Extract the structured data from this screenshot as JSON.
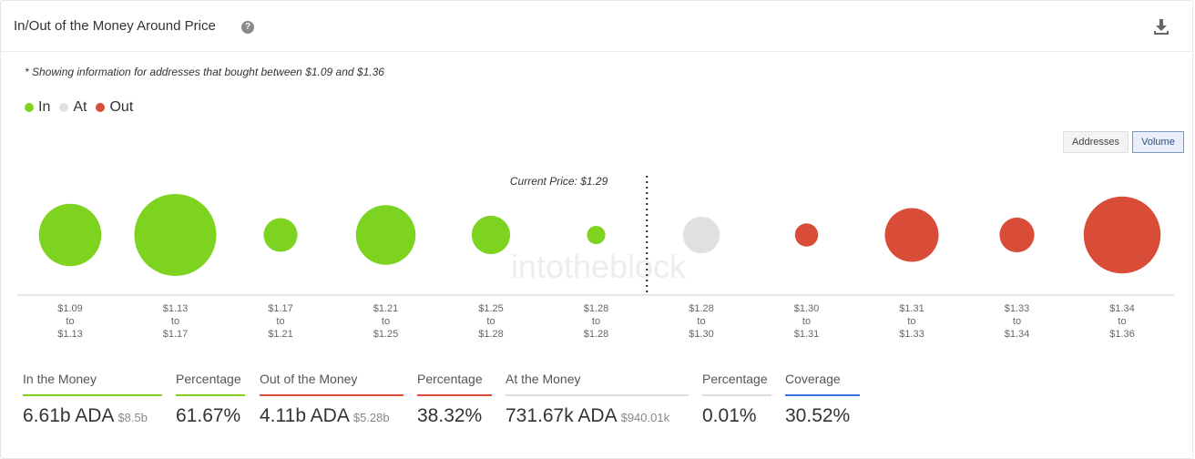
{
  "header": {
    "title": "In/Out of the Money Around Price",
    "help_icon": "question-circle-icon",
    "download_icon": "download-icon"
  },
  "note": "* Showing information for addresses that bought between $1.09 and $1.36",
  "legend": [
    {
      "label": "In",
      "color": "#7ed321"
    },
    {
      "label": "At",
      "color": "#e0e0e0"
    },
    {
      "label": "Out",
      "color": "#d94c38"
    }
  ],
  "toggles": {
    "addresses": "Addresses",
    "volume": "Volume",
    "active": "volume"
  },
  "watermark": "intotheblock",
  "chart_data": {
    "type": "scatter",
    "annotation": "Current Price: $1.29",
    "current_price_after_index": 5,
    "ranges": [
      {
        "from": "$1.09",
        "to": "$1.13",
        "status": "in",
        "relative_size": 0.58
      },
      {
        "from": "$1.13",
        "to": "$1.17",
        "status": "in",
        "relative_size": 1.0
      },
      {
        "from": "$1.17",
        "to": "$1.21",
        "status": "in",
        "relative_size": 0.17
      },
      {
        "from": "$1.21",
        "to": "$1.25",
        "status": "in",
        "relative_size": 0.53
      },
      {
        "from": "$1.25",
        "to": "$1.28",
        "status": "in",
        "relative_size": 0.22
      },
      {
        "from": "$1.28",
        "to": "$1.28",
        "status": "in",
        "relative_size": 0.05
      },
      {
        "from": "$1.28",
        "to": "$1.30",
        "status": "at",
        "relative_size": 0.2
      },
      {
        "from": "$1.30",
        "to": "$1.31",
        "status": "out",
        "relative_size": 0.08
      },
      {
        "from": "$1.31",
        "to": "$1.33",
        "status": "out",
        "relative_size": 0.43
      },
      {
        "from": "$1.33",
        "to": "$1.34",
        "status": "out",
        "relative_size": 0.18
      },
      {
        "from": "$1.34",
        "to": "$1.36",
        "status": "out",
        "relative_size": 0.88
      }
    ],
    "to_word": "to",
    "colors": {
      "in": "#7ed321",
      "at": "#e0e0e0",
      "out": "#d94c38"
    }
  },
  "stats": {
    "in_money": {
      "label": "In the Money",
      "value": "6.61b ADA",
      "sub": "$8.5b",
      "color": "#7ed321"
    },
    "in_pct": {
      "label": "Percentage",
      "value": "61.67%",
      "color": "#7ed321"
    },
    "out_money": {
      "label": "Out of the Money",
      "value": "4.11b ADA",
      "sub": "$5.28b",
      "color": "#d94c38"
    },
    "out_pct": {
      "label": "Percentage",
      "value": "38.32%",
      "color": "#d94c38"
    },
    "at_money": {
      "label": "At the Money",
      "value": "731.67k ADA",
      "sub": "$940.01k",
      "color": "#dddddd"
    },
    "at_pct": {
      "label": "Percentage",
      "value": "0.01%",
      "color": "#dddddd"
    },
    "coverage": {
      "label": "Coverage",
      "value": "30.52%",
      "color": "#3a73d6"
    }
  }
}
